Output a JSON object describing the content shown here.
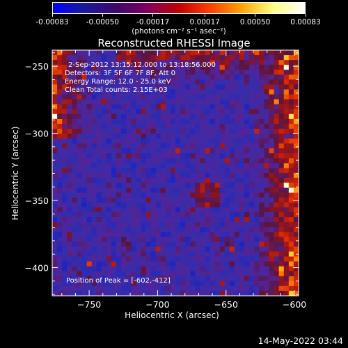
{
  "colorbar": {
    "tick_labels": [
      "-0.00083",
      "-0.00050",
      "-0.00017",
      "0.00017",
      "0.00050",
      "0.00083"
    ],
    "tick_values": [
      -0.00083,
      -0.0005,
      -0.00017,
      0.00017,
      0.0005,
      0.00083
    ],
    "range": [
      -0.00083,
      0.00083
    ],
    "unit_label": "(photons cm⁻² s⁻¹ asec⁻²)",
    "colors": [
      "#0000ff",
      "#1a1a9a",
      "#3a0a6a",
      "#800060",
      "#c00000",
      "#ff4000",
      "#ffa500",
      "#ffff80",
      "#ffffff"
    ]
  },
  "chart_data": {
    "type": "heatmap",
    "title": "Reconstructed RHESSI Image",
    "xlabel": "Heliocentric X (arcsec)",
    "ylabel": "Heliocentric Y (arcsec)",
    "xlim": [
      -777,
      -597
    ],
    "ylim": [
      -421,
      -238
    ],
    "x_ticks": [
      -750,
      -700,
      -650,
      -600
    ],
    "x_tick_labels": [
      "−750",
      "−700",
      "−650",
      "−600"
    ],
    "y_ticks": [
      -250,
      -300,
      -350,
      -400
    ],
    "y_tick_labels": [
      "−250",
      "−300",
      "−350",
      "−400"
    ],
    "annotations": [
      "2-Sep-2012 13:15:12.000 to 13:18:56.000",
      "Detectors: 3F 5F 6F 7F 8F, Att 0",
      "Energy Range: 12.0 - 25.0 keV",
      "Clean     Total counts: 2.15E+03"
    ],
    "peak_label": "Position of Peak = [-602,-412]",
    "peak": [
      -602,
      -412
    ],
    "grid": false
  },
  "footer": {
    "date": "14-May-2022 03:44"
  }
}
